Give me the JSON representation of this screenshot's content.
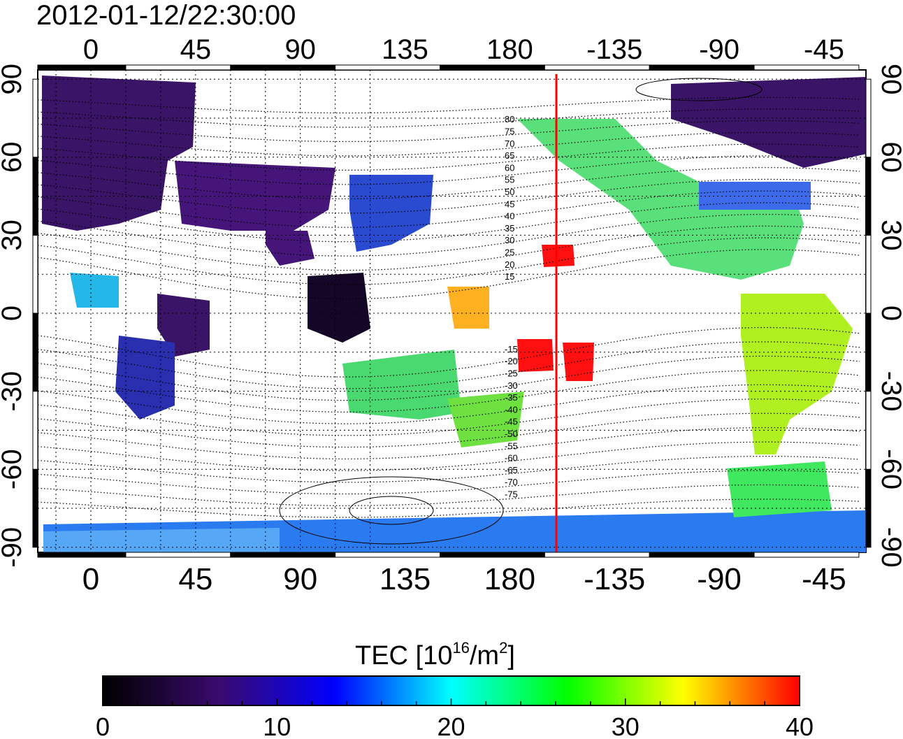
{
  "title": "2012-01-12/22:30:00",
  "map": {
    "lon_ticks": [
      "0",
      "45",
      "90",
      "135",
      "180",
      "-135",
      "-90",
      "-45"
    ],
    "lat_ticks": [
      "90",
      "60",
      "30",
      "0",
      "-30",
      "-60",
      "-90"
    ],
    "contour_labels": [
      "80",
      "75",
      "70",
      "65",
      "60",
      "55",
      "50",
      "45",
      "40",
      "35",
      "30",
      "25",
      "20",
      "15",
      "-15",
      "-20",
      "-25",
      "-30",
      "-35",
      "-40",
      "-45",
      "-50",
      "-55",
      "-60",
      "-65",
      "-70",
      "-75"
    ],
    "marked_longitude": -160,
    "marked_longitude_color": "#ff0000"
  },
  "colorbar": {
    "title_main": "TEC  [10",
    "title_exp1": "16",
    "title_mid": "/m",
    "title_exp2": "2",
    "title_end": "]",
    "min": 0,
    "max": 40,
    "tick_labels": [
      "0",
      "10",
      "20",
      "30",
      "40"
    ],
    "colormap": [
      "#000000",
      "#3a0a6e",
      "#0000ff",
      "#00ffff",
      "#00ff00",
      "#ffff00",
      "#ff0000"
    ]
  }
}
